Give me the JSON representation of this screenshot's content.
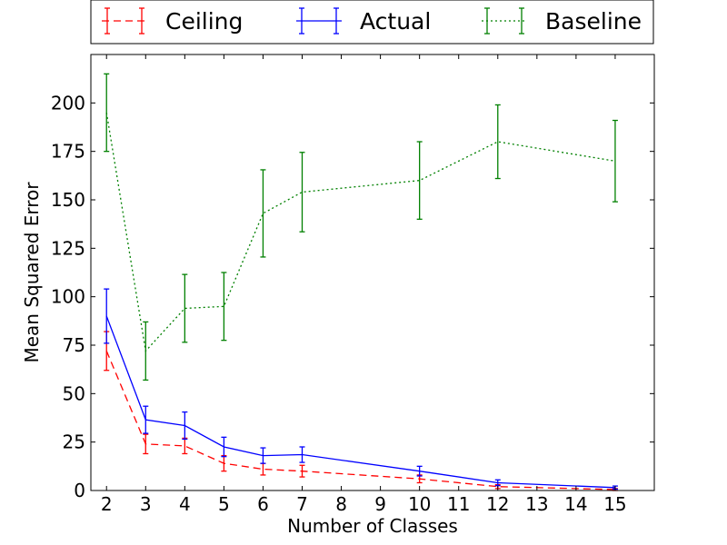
{
  "chart_data": {
    "type": "line",
    "title": "",
    "xlabel": "Number of Classes",
    "ylabel": "Mean Squared Error",
    "xlim": [
      1.6,
      16
    ],
    "ylim": [
      0,
      225
    ],
    "xticks": [
      2,
      3,
      4,
      5,
      6,
      7,
      8,
      9,
      10,
      11,
      12,
      13,
      14,
      15
    ],
    "yticks": [
      0,
      25,
      50,
      75,
      100,
      125,
      150,
      175,
      200
    ],
    "grid": false,
    "legend_position": "top",
    "x": [
      2,
      3,
      4,
      5,
      6,
      7,
      10,
      12,
      15
    ],
    "series": [
      {
        "name": "Ceiling",
        "color": "#ff0000",
        "style": "dashed",
        "values": [
          72,
          24,
          23,
          14,
          11,
          10,
          6,
          2,
          0.5
        ],
        "errors": [
          10,
          5,
          4,
          4,
          3,
          3,
          2,
          1,
          0.5
        ]
      },
      {
        "name": "Actual",
        "color": "#0000ff",
        "style": "solid",
        "values": [
          90,
          36.5,
          33.5,
          22.5,
          18,
          18.5,
          10,
          4,
          1.5
        ],
        "errors": [
          14,
          7,
          7,
          5,
          4,
          4,
          2.5,
          1.5,
          0.8
        ]
      },
      {
        "name": "Baseline",
        "color": "#008000",
        "style": "dotted",
        "values": [
          195,
          72,
          94,
          95,
          143,
          154,
          160,
          180,
          170
        ],
        "errors": [
          20,
          15,
          17.5,
          17.5,
          22.5,
          20.5,
          20,
          19,
          21
        ]
      }
    ]
  }
}
